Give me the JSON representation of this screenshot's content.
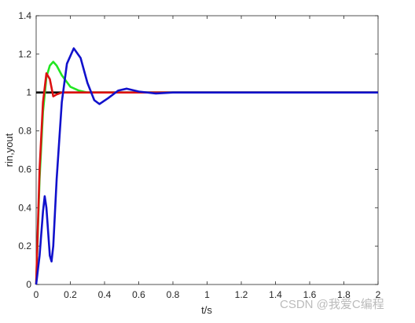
{
  "chart_data": {
    "type": "line",
    "xlabel": "t/s",
    "ylabel": "rin,yout",
    "annotation": "CSDN @我爱C编程",
    "xlim": [
      0,
      2
    ],
    "ylim": [
      0,
      1.4
    ],
    "xticks": [
      0,
      0.2,
      0.4,
      0.6,
      0.8,
      1,
      1.2,
      1.4,
      1.6,
      1.8,
      2
    ],
    "yticks": [
      0,
      0.2,
      0.4,
      0.6,
      0.8,
      1,
      1.2,
      1.4
    ],
    "series": [
      {
        "color": "#000000",
        "x": [
          0,
          2
        ],
        "values": [
          1,
          1
        ]
      },
      {
        "color": "#22e622",
        "x": [
          0,
          0.02,
          0.04,
          0.06,
          0.08,
          0.1,
          0.12,
          0.15,
          0.2,
          0.25,
          0.3,
          0.4,
          2
        ],
        "values": [
          0,
          0.55,
          0.9,
          1.08,
          1.14,
          1.16,
          1.14,
          1.09,
          1.03,
          1.01,
          1.0,
          1.0,
          1.0
        ]
      },
      {
        "color": "#dd1111",
        "x": [
          0,
          0.02,
          0.04,
          0.06,
          0.08,
          0.1,
          0.12,
          0.15,
          2
        ],
        "values": [
          0,
          0.6,
          0.95,
          1.1,
          1.07,
          0.98,
          0.99,
          1.0,
          1.0
        ]
      },
      {
        "color": "#1111cc",
        "x": [
          0,
          0.02,
          0.04,
          0.05,
          0.06,
          0.08,
          0.09,
          0.1,
          0.12,
          0.15,
          0.18,
          0.22,
          0.26,
          0.3,
          0.34,
          0.37,
          0.42,
          0.48,
          0.53,
          0.6,
          0.7,
          0.8,
          2
        ],
        "values": [
          0,
          0.15,
          0.38,
          0.46,
          0.4,
          0.15,
          0.12,
          0.2,
          0.55,
          0.95,
          1.15,
          1.23,
          1.18,
          1.05,
          0.96,
          0.94,
          0.97,
          1.01,
          1.02,
          1.005,
          0.995,
          1.0,
          1.0
        ]
      }
    ]
  }
}
